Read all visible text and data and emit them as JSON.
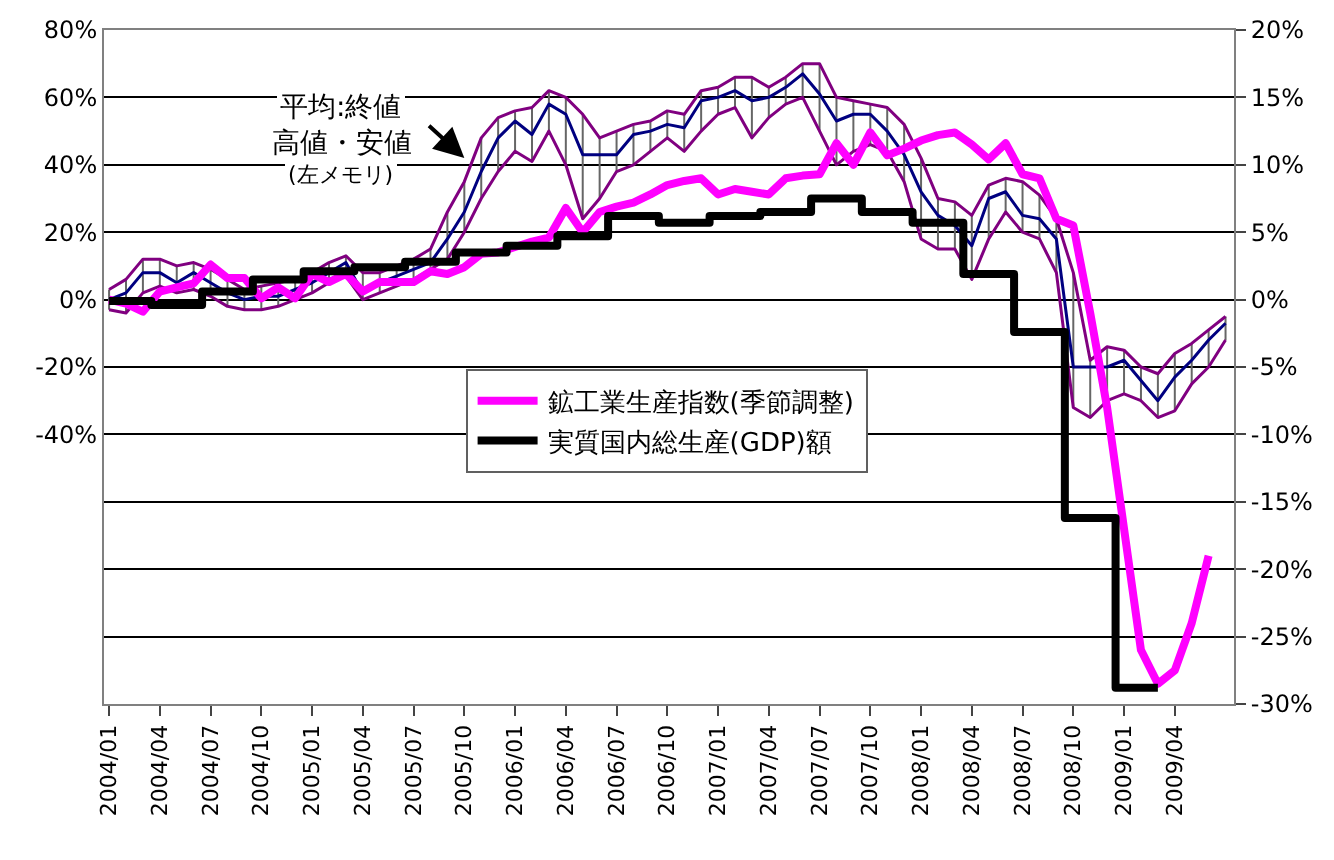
{
  "chart_data": {
    "type": "line",
    "categories": [
      "2004/01",
      null,
      null,
      "2004/04",
      null,
      null,
      "2004/07",
      null,
      null,
      "2004/10",
      null,
      null,
      "2005/01",
      null,
      null,
      "2005/04",
      null,
      null,
      "2005/07",
      null,
      null,
      "2005/10",
      null,
      null,
      "2006/01",
      null,
      null,
      "2006/04",
      null,
      null,
      "2006/07",
      null,
      null,
      "2006/10",
      null,
      null,
      "2007/01",
      null,
      null,
      "2007/04",
      null,
      null,
      "2007/07",
      null,
      null,
      "2007/10",
      null,
      null,
      "2008/01",
      null,
      null,
      "2008/04",
      null,
      null,
      "2008/07",
      null,
      null,
      "2008/10",
      null,
      null,
      "2009/01",
      null,
      null,
      "2009/04",
      null,
      null,
      null
    ],
    "series": [
      {
        "color": "#800080",
        "values": [
          3,
          6,
          12,
          12,
          10,
          11,
          9,
          6,
          3,
          4,
          5,
          6,
          8,
          11,
          13,
          8,
          8,
          10,
          12,
          15,
          26,
          35,
          48,
          54,
          56,
          57,
          62,
          60,
          55,
          48,
          50,
          52,
          53,
          56,
          55,
          62,
          63,
          66,
          66,
          63,
          66,
          70,
          70,
          60,
          59,
          58,
          57,
          52,
          42,
          30,
          29,
          25,
          34,
          36,
          35,
          31,
          24,
          8,
          -18,
          -14,
          -15,
          -20,
          -22,
          -16,
          -13,
          -9,
          -5
        ]
      },
      {
        "color": "#800080",
        "values": [
          -3,
          -4,
          2,
          4,
          2,
          3,
          1,
          -2,
          -3,
          -3,
          -2,
          0,
          2,
          5,
          7,
          0,
          2,
          4,
          6,
          9,
          12,
          20,
          30,
          38,
          44,
          41,
          50,
          40,
          24,
          30,
          38,
          40,
          44,
          48,
          44,
          50,
          55,
          57,
          48,
          54,
          58,
          60,
          50,
          40,
          44,
          46,
          44,
          35,
          18,
          15,
          15,
          6,
          18,
          26,
          20,
          18,
          8,
          -32,
          -35,
          -30,
          -28,
          -30,
          -35,
          -33,
          -25,
          -20,
          -12
        ]
      },
      {
        "color": "#000080",
        "errors": [
          [
            -3,
            3
          ],
          [
            -4,
            6
          ],
          [
            2,
            12
          ],
          [
            4,
            12
          ],
          [
            2,
            10
          ],
          [
            3,
            11
          ],
          [
            1,
            9
          ],
          [
            -2,
            6
          ],
          [
            -3,
            3
          ],
          [
            -3,
            4
          ],
          [
            -2,
            5
          ],
          [
            0,
            6
          ],
          [
            2,
            8
          ],
          [
            5,
            11
          ],
          [
            7,
            13
          ],
          [
            0,
            8
          ],
          [
            2,
            8
          ],
          [
            4,
            10
          ],
          [
            6,
            12
          ],
          [
            9,
            15
          ],
          [
            12,
            26
          ],
          [
            20,
            35
          ],
          [
            30,
            48
          ],
          [
            38,
            54
          ],
          [
            44,
            56
          ],
          [
            41,
            57
          ],
          [
            50,
            62
          ],
          [
            40,
            60
          ],
          [
            24,
            55
          ],
          [
            30,
            48
          ],
          [
            38,
            50
          ],
          [
            40,
            52
          ],
          [
            44,
            53
          ],
          [
            48,
            56
          ],
          [
            44,
            55
          ],
          [
            50,
            62
          ],
          [
            55,
            63
          ],
          [
            57,
            66
          ],
          [
            48,
            66
          ],
          [
            54,
            63
          ],
          [
            58,
            66
          ],
          [
            60,
            70
          ],
          [
            50,
            70
          ],
          [
            40,
            60
          ],
          [
            44,
            59
          ],
          [
            46,
            58
          ],
          [
            44,
            57
          ],
          [
            35,
            52
          ],
          [
            18,
            42
          ],
          [
            15,
            30
          ],
          [
            15,
            29
          ],
          [
            6,
            25
          ],
          [
            18,
            34
          ],
          [
            26,
            36
          ],
          [
            20,
            35
          ],
          [
            18,
            31
          ],
          [
            8,
            24
          ],
          [
            -32,
            8
          ],
          [
            -35,
            -18
          ],
          [
            -30,
            -14
          ],
          [
            -28,
            -15
          ],
          [
            -30,
            -20
          ],
          [
            -35,
            -22
          ],
          [
            -33,
            -16
          ],
          [
            -25,
            -13
          ],
          [
            -20,
            -9
          ],
          [
            -12,
            -5
          ]
        ],
        "values": [
          0,
          2,
          8,
          8,
          5,
          8,
          5,
          2,
          0,
          1,
          1,
          3,
          5,
          8,
          11,
          2,
          5,
          7,
          9,
          11,
          18,
          26,
          38,
          48,
          53,
          49,
          58,
          55,
          43,
          43,
          43,
          49,
          50,
          52,
          51,
          59,
          60,
          62,
          59,
          60,
          63,
          67,
          61,
          53,
          55,
          55,
          50,
          43,
          32,
          25,
          22,
          16,
          30,
          32,
          25,
          24,
          18,
          -20,
          -20,
          -20,
          -18,
          -24,
          -30,
          -23,
          -18,
          -12,
          -7
        ]
      },
      {
        "name": "鉱工業生産指数(季節調整)",
        "color": "#ff00ff",
        "axis": "y2",
        "values": [
          0,
          -0.3,
          -0.9,
          0.6,
          0.9,
          1.2,
          2.6,
          1.6,
          1.6,
          0.1,
          0.9,
          0.1,
          1.9,
          1.3,
          1.9,
          0.6,
          1.3,
          1.3,
          1.3,
          2.1,
          1.9,
          2.4,
          3.4,
          3.5,
          3.9,
          4.3,
          4.6,
          6.8,
          5.0,
          6.5,
          6.9,
          7.2,
          7.8,
          8.5,
          8.8,
          9.0,
          7.8,
          8.2,
          8.0,
          7.8,
          9.0,
          9.2,
          9.3,
          11.6,
          10.0,
          12.4,
          10.7,
          11.2,
          11.8,
          12.2,
          12.4,
          11.5,
          10.4,
          11.6,
          9.3,
          9.0,
          6.0,
          5.5,
          -1,
          -8,
          -17,
          -26,
          -28.5,
          -27.5,
          -24,
          -19,
          null
        ]
      },
      {
        "name": "実質国内総生産(GDP)額",
        "type": "step",
        "color": "#000000",
        "axis": "y2",
        "values": [
          -0.1,
          -0.1,
          -0.1,
          -0.4,
          -0.4,
          -0.4,
          0.6,
          0.6,
          0.6,
          1.5,
          1.5,
          1.5,
          2.1,
          2.1,
          2.1,
          2.4,
          2.4,
          2.4,
          2.8,
          2.8,
          2.8,
          3.5,
          3.5,
          3.5,
          4.0,
          4.0,
          4.0,
          4.7,
          4.7,
          4.7,
          6.2,
          6.2,
          6.2,
          5.7,
          5.7,
          5.7,
          6.2,
          6.2,
          6.2,
          6.5,
          6.5,
          6.5,
          7.5,
          7.5,
          7.5,
          6.5,
          6.5,
          6.5,
          5.7,
          5.7,
          5.7,
          1.9,
          1.9,
          1.9,
          -2.4,
          -2.4,
          -2.4,
          -16.2,
          -16.2,
          -16.2,
          -28.8,
          -28.8,
          -28.8,
          null,
          null,
          null,
          null
        ]
      }
    ],
    "ylim": [
      -120,
      80
    ],
    "yticks": [
      {
        "value": -120,
        "label": null
      },
      {
        "value": -100,
        "label": null
      },
      {
        "value": -80,
        "label": null
      },
      {
        "value": -60,
        "label": null
      },
      {
        "value": -40,
        "label": "-40%"
      },
      {
        "value": -20,
        "label": "-20%"
      },
      {
        "value": 0,
        "label": "0%"
      },
      {
        "value": 20,
        "label": "20%"
      },
      {
        "value": 40,
        "label": "40%"
      },
      {
        "value": 60,
        "label": "60%"
      },
      {
        "value": 80,
        "label": "80%"
      }
    ],
    "y2lim": [
      -30,
      20
    ],
    "y2ticks": [
      {
        "value": -30,
        "label": "-30%"
      },
      {
        "value": -25,
        "label": "-25%"
      },
      {
        "value": -20,
        "label": "-20%"
      },
      {
        "value": -15,
        "label": "-15%"
      },
      {
        "value": -10,
        "label": "-10%"
      },
      {
        "value": -5,
        "label": "-5%"
      },
      {
        "value": 0,
        "label": "0%"
      },
      {
        "value": 5,
        "label": "5%"
      },
      {
        "value": 10,
        "label": "10%"
      },
      {
        "value": 15,
        "label": "15%"
      },
      {
        "value": 20,
        "label": "20%"
      }
    ],
    "annotations": [
      "平均:終値",
      {
        "text": "高値・安値",
        "x": "2005/10",
        "y": 42
      },
      "(左メモリ)"
    ],
    "grid": "y",
    "legend": "center"
  }
}
